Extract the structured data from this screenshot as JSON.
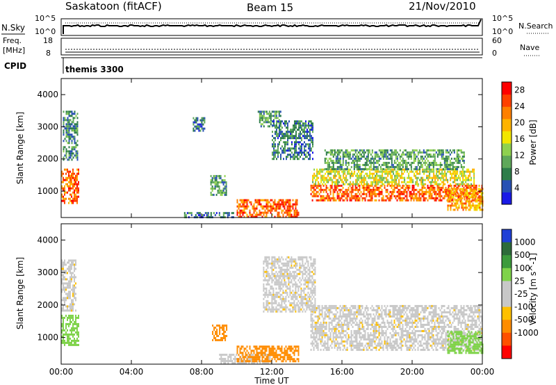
{
  "header": {
    "station": "Saskatoon (fitACF)",
    "beam": "Beam 15",
    "date": "21/Nov/2010"
  },
  "summary": {
    "nsky_label": "N.Sky",
    "nsearch_label": "N.Search",
    "noise_ticks": [
      "10^5",
      "10^0"
    ],
    "freq_label": "Freq.",
    "freq_unit": "[MHz]",
    "freq_ticks": [
      "18",
      "8"
    ],
    "nave_label": "Nave",
    "nave_ticks": [
      "60",
      "0"
    ],
    "cpid_label": "CPID",
    "cpid_value": "themis 3300"
  },
  "colors": {
    "power_scale": [
      "#1a1ae6",
      "#2851b4",
      "#2e7d4a",
      "#5fa85a",
      "#8fd14f",
      "#f2e600",
      "#ffb300",
      "#ff8000",
      "#ff4000",
      "#ff0000"
    ],
    "velocity_scale": [
      "#1f3fd6",
      "#2d6b3a",
      "#3c9b3c",
      "#7fd34a",
      "#c8c8c8",
      "#c8c8c8",
      "#ffc000",
      "#ff8c00",
      "#ff5000",
      "#ff0000"
    ]
  },
  "chart_data": [
    {
      "type": "heatmap",
      "panel": "power",
      "xlabel": "Time UT",
      "ylabel": "Slant Range [km]",
      "xlim": [
        0,
        24
      ],
      "ylim": [
        180,
        4500
      ],
      "x_ticks": [
        "00:00",
        "04:00",
        "08:00",
        "12:00",
        "16:00",
        "20:00",
        "00:00"
      ],
      "y_ticks": [
        1000,
        2000,
        3000,
        4000
      ],
      "colorbar": {
        "label": "Power [dB]",
        "ticks": [
          4,
          8,
          12,
          16,
          20,
          24,
          28
        ],
        "range": [
          0,
          30
        ]
      },
      "regions": [
        {
          "t": [
            0.0,
            1.0
          ],
          "r": [
            600,
            1700
          ],
          "value": 24
        },
        {
          "t": [
            0.1,
            0.9
          ],
          "r": [
            2000,
            3500
          ],
          "value": 8
        },
        {
          "t": [
            7.5,
            8.2
          ],
          "r": [
            2900,
            3300
          ],
          "value": 6
        },
        {
          "t": [
            8.5,
            9.4
          ],
          "r": [
            900,
            1500
          ],
          "value": 10
        },
        {
          "t": [
            7.0,
            10.0
          ],
          "r": [
            180,
            350
          ],
          "value": 6
        },
        {
          "t": [
            10.0,
            13.5
          ],
          "r": [
            180,
            750
          ],
          "value": 24
        },
        {
          "t": [
            11.2,
            12.5
          ],
          "r": [
            3000,
            3500
          ],
          "value": 9
        },
        {
          "t": [
            12.0,
            14.3
          ],
          "r": [
            2000,
            3200
          ],
          "value": 7
        },
        {
          "t": [
            14.2,
            24.0
          ],
          "r": [
            700,
            1200
          ],
          "value": 24
        },
        {
          "t": [
            14.3,
            23.5
          ],
          "r": [
            1200,
            1700
          ],
          "value": 16
        },
        {
          "t": [
            15.0,
            23.0
          ],
          "r": [
            1700,
            2300
          ],
          "value": 10
        },
        {
          "t": [
            22.0,
            24.0
          ],
          "r": [
            400,
            1100
          ],
          "value": 20
        }
      ]
    },
    {
      "type": "heatmap",
      "panel": "velocity",
      "xlabel": "Time UT",
      "ylabel": "Slant Range [km]",
      "xlim": [
        0,
        24
      ],
      "ylim": [
        180,
        4500
      ],
      "x_ticks": [
        "00:00",
        "04:00",
        "08:00",
        "12:00",
        "16:00",
        "20:00",
        "00:00"
      ],
      "y_ticks": [
        1000,
        2000,
        3000,
        4000
      ],
      "colorbar": {
        "label": "Velocity [m s^-1]",
        "ticks": [
          "1000",
          "500",
          "100",
          "25",
          "-25",
          "-100",
          "-500",
          "-1000"
        ]
      },
      "regions": [
        {
          "t": [
            0.0,
            1.0
          ],
          "r": [
            800,
            1700
          ],
          "value": 300
        },
        {
          "t": [
            0.0,
            0.8
          ],
          "r": [
            1800,
            3400
          ],
          "value": 0
        },
        {
          "t": [
            8.6,
            9.4
          ],
          "r": [
            900,
            1400
          ],
          "value": -400
        },
        {
          "t": [
            9.0,
            12.0
          ],
          "r": [
            200,
            500
          ],
          "value": 50
        },
        {
          "t": [
            10.0,
            13.5
          ],
          "r": [
            300,
            750
          ],
          "value": -200
        },
        {
          "t": [
            11.5,
            14.5
          ],
          "r": [
            1800,
            3500
          ],
          "value": 0
        },
        {
          "t": [
            14.2,
            24.0
          ],
          "r": [
            600,
            2000
          ],
          "value": 0
        },
        {
          "t": [
            22.0,
            24.0
          ],
          "r": [
            500,
            1200
          ],
          "value": 150
        }
      ]
    }
  ]
}
